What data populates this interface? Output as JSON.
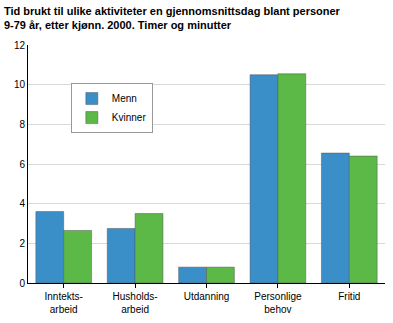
{
  "chart_data": {
    "type": "bar",
    "title": "Tid brukt til ulike aktiviteter en gjennomsnittsdag blant personer\n9-79 år, etter kjønn. 2000. Timer og minutter",
    "categories": [
      "Inntekts-\narbeid",
      "Husholds-\narbeid",
      "Utdanning",
      "Personlige\nbehov",
      "Fritid"
    ],
    "series": [
      {
        "name": "Menn",
        "color": "#3a8fc9",
        "values": [
          3.6,
          2.75,
          0.8,
          10.5,
          6.55
        ]
      },
      {
        "name": "Kvinner",
        "color": "#5cb947",
        "values": [
          2.65,
          3.5,
          0.8,
          10.55,
          6.4
        ]
      }
    ],
    "ylim": [
      0,
      12
    ],
    "yticks": [
      0,
      2,
      4,
      6,
      8,
      10,
      12
    ],
    "grid": true,
    "legend": "upper left"
  }
}
